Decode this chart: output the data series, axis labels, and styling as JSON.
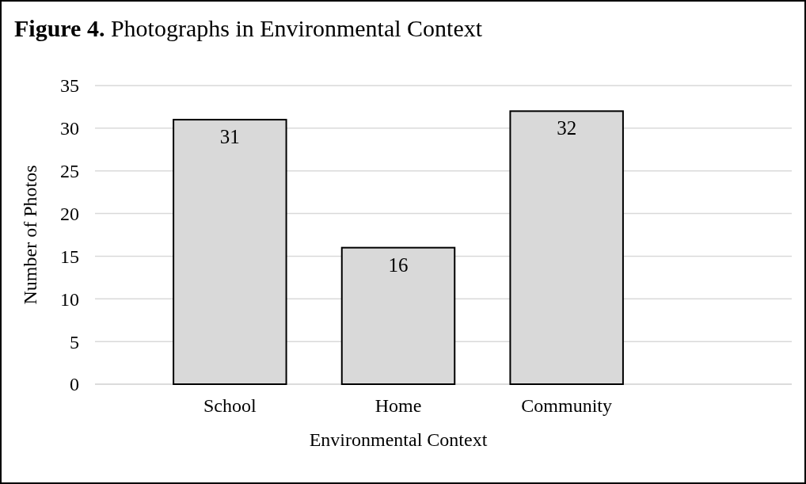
{
  "chart_data": {
    "type": "bar",
    "title": "Figure 4. Photographs in Environmental Context",
    "xlabel": "Environmental Context",
    "ylabel": "Number of Photos",
    "categories": [
      "School",
      "Home",
      "Community"
    ],
    "values": [
      31,
      16,
      32
    ],
    "color": "#d9d9d9",
    "ylim": [
      0,
      35
    ],
    "yticks": [
      0,
      5,
      10,
      15,
      20,
      25,
      30,
      35
    ],
    "grid": "y",
    "data_labels": true
  }
}
